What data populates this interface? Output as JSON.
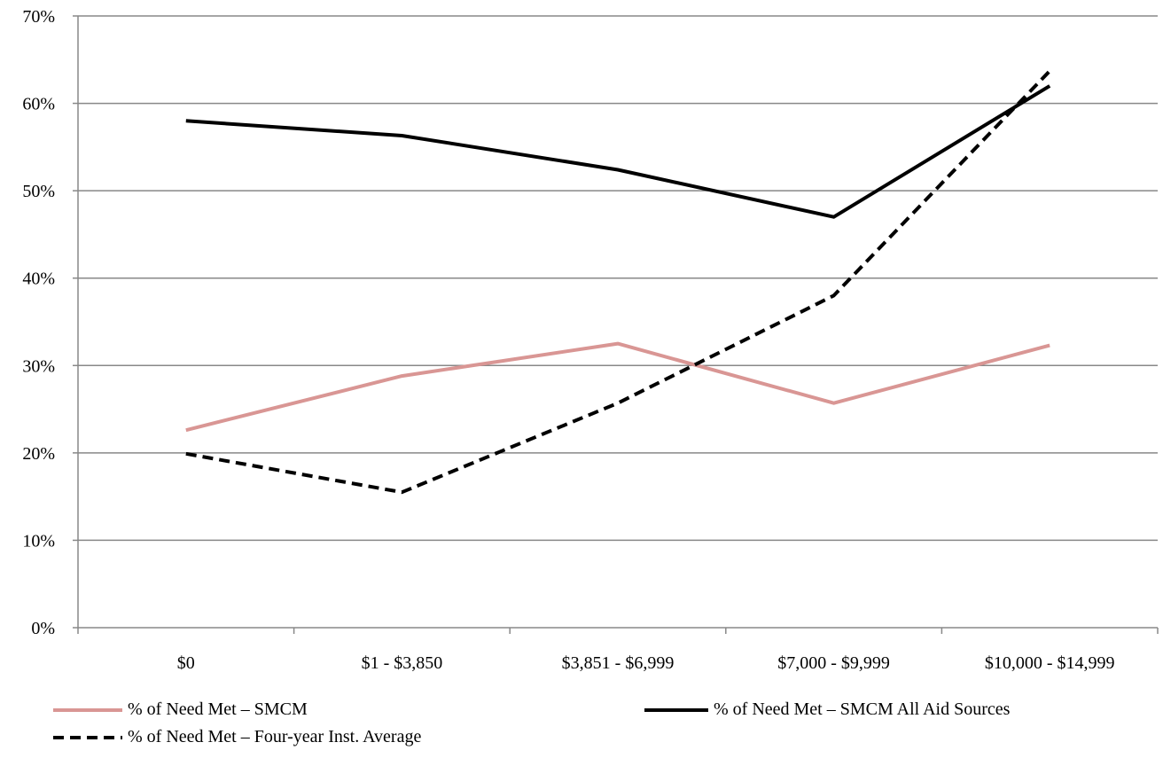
{
  "chart_data": {
    "type": "line",
    "categories": [
      "$0",
      "$1 - $3,850",
      "$3,851 - $6,999",
      "$7,000 - $9,999",
      "$10,000 - $14,999"
    ],
    "ylim": [
      0,
      70
    ],
    "yticks": [
      0,
      10,
      20,
      30,
      40,
      50,
      60,
      70
    ],
    "ytick_labels": [
      "0%",
      "10%",
      "20%",
      "30%",
      "40%",
      "50%",
      "60%",
      "70%"
    ],
    "grid": true,
    "legend_position": "bottom",
    "series": [
      {
        "name": "% of Need Met – SMCM",
        "values": [
          22.6,
          28.8,
          32.5,
          25.7,
          32.3
        ],
        "color": "#d99694",
        "style": "solid"
      },
      {
        "name": "% of Need Met – SMCM All Aid Sources",
        "values": [
          58.0,
          56.3,
          52.4,
          47.0,
          62.0
        ],
        "color": "#000000",
        "style": "solid"
      },
      {
        "name": "% of Need Met – Four-year Inst. Average",
        "values": [
          19.9,
          15.5,
          25.7,
          38.0,
          63.7
        ],
        "color": "#000000",
        "style": "dashed"
      }
    ]
  }
}
